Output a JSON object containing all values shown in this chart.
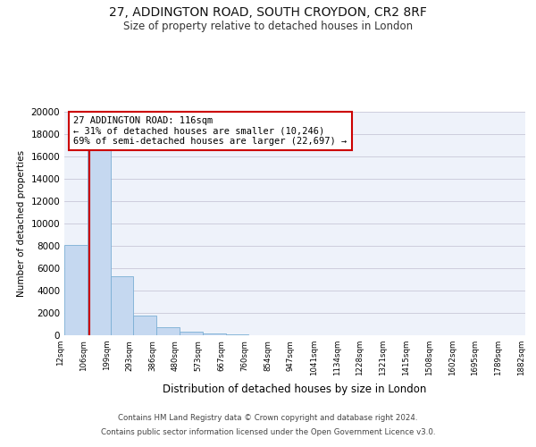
{
  "title": "27, ADDINGTON ROAD, SOUTH CROYDON, CR2 8RF",
  "subtitle": "Size of property relative to detached houses in London",
  "xlabel": "Distribution of detached houses by size in London",
  "ylabel": "Number of detached properties",
  "bin_labels": [
    "12sqm",
    "106sqm",
    "199sqm",
    "293sqm",
    "386sqm",
    "480sqm",
    "573sqm",
    "667sqm",
    "760sqm",
    "854sqm",
    "947sqm",
    "1041sqm",
    "1134sqm",
    "1228sqm",
    "1321sqm",
    "1415sqm",
    "1508sqm",
    "1602sqm",
    "1695sqm",
    "1789sqm",
    "1882sqm"
  ],
  "bar_heights": [
    8100,
    16600,
    5300,
    1800,
    700,
    300,
    200,
    100,
    0,
    0,
    0,
    0,
    0,
    0,
    0,
    0,
    0,
    0,
    0,
    0
  ],
  "bar_color": "#c5d8f0",
  "bar_edge_color": "#7bafd4",
  "vline_x": 1.1,
  "vline_color": "#cc0000",
  "annotation_title": "27 ADDINGTON ROAD: 116sqm",
  "annotation_line1": "← 31% of detached houses are smaller (10,246)",
  "annotation_line2": "69% of semi-detached houses are larger (22,697) →",
  "annotation_box_color": "#ffffff",
  "annotation_box_edge": "#cc0000",
  "ylim": [
    0,
    20000
  ],
  "yticks": [
    0,
    2000,
    4000,
    6000,
    8000,
    10000,
    12000,
    14000,
    16000,
    18000,
    20000
  ],
  "bg_color": "#eef2fa",
  "footer_line1": "Contains HM Land Registry data © Crown copyright and database right 2024.",
  "footer_line2": "Contains public sector information licensed under the Open Government Licence v3.0."
}
